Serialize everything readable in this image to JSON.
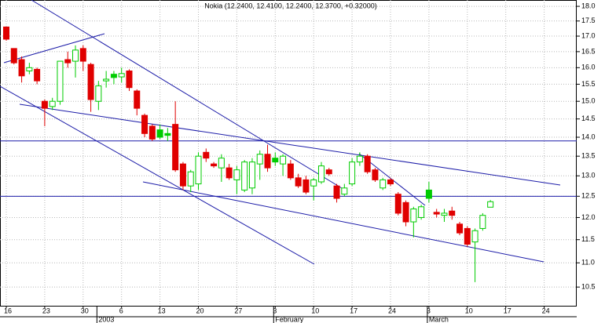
{
  "chart_data": {
    "type": "candlestick",
    "title": "Nokia (12.2400, 12.4100, 12.2400, 12.3700, +0.32000)",
    "categories": [
      "16",
      null,
      null,
      null,
      null,
      "23",
      null,
      null,
      null,
      null,
      "30",
      null,
      null,
      null,
      null,
      "6",
      null,
      null,
      null,
      null,
      "13",
      null,
      null,
      null,
      null,
      "20",
      null,
      null,
      null,
      null,
      "27",
      null,
      null,
      null,
      null,
      "3",
      null,
      null,
      null,
      null,
      "10",
      null,
      null,
      null,
      null,
      "17",
      null,
      null,
      null,
      null,
      "24",
      null,
      null,
      null,
      null,
      "3",
      null,
      null,
      null,
      null,
      "10",
      null,
      null,
      null,
      null,
      "17",
      null,
      null,
      null,
      null,
      "24",
      null,
      null,
      null,
      null
    ],
    "period_labels": [
      "2003",
      "February",
      "March"
    ],
    "open": [
      17.3,
      16.6,
      16.25,
      15.9,
      15.95,
      15.0,
      14.85,
      15.0,
      16.25,
      16.2,
      16.6,
      16.1,
      15.0,
      15.6,
      15.8,
      15.72,
      15.9,
      15.3,
      14.6,
      14.3,
      14.2,
      14.1,
      14.35,
      13.3,
      12.75,
      12.8,
      13.6,
      13.3,
      13.2,
      13.2,
      12.9,
      12.65,
      12.7,
      13.3,
      13.55,
      13.45,
      13.3,
      13.3,
      12.95,
      12.9,
      12.75,
      12.85,
      13.15,
      12.75,
      12.55,
      12.8,
      13.35,
      13.5,
      13.15,
      12.7,
      12.9,
      12.55,
      12.35,
      11.9,
      12.0,
      12.65,
      12.12,
      12.05,
      12.15,
      11.85,
      11.75,
      11.45,
      11.75,
      12.24,
      null,
      null,
      null,
      null,
      null,
      null,
      null,
      null,
      null,
      null,
      null
    ],
    "high": [
      17.3,
      16.6,
      16.35,
      16.15,
      16.0,
      15.05,
      15.1,
      16.2,
      16.5,
      16.7,
      16.7,
      16.15,
      15.6,
      15.9,
      15.9,
      16.0,
      15.95,
      15.35,
      14.65,
      14.35,
      14.35,
      14.25,
      15.0,
      13.35,
      13.15,
      13.6,
      13.7,
      13.35,
      13.55,
      13.3,
      13.25,
      13.4,
      13.45,
      13.65,
      13.8,
      13.6,
      13.55,
      13.4,
      13.05,
      13.0,
      12.95,
      13.35,
      13.2,
      12.8,
      12.8,
      13.45,
      13.6,
      13.55,
      13.2,
      12.95,
      12.95,
      12.6,
      12.4,
      12.25,
      12.3,
      12.85,
      12.2,
      12.2,
      12.25,
      11.9,
      11.8,
      11.75,
      12.1,
      12.41,
      null,
      null,
      null,
      null,
      null,
      null,
      null,
      null,
      null,
      null,
      null
    ],
    "low": [
      16.85,
      16.1,
      15.55,
      15.8,
      15.5,
      14.3,
      14.75,
      14.9,
      16.0,
      15.7,
      15.9,
      14.7,
      14.75,
      15.4,
      15.5,
      15.55,
      15.3,
      14.6,
      14.0,
      13.9,
      13.95,
      13.9,
      13.1,
      12.65,
      12.6,
      12.65,
      13.35,
      13.2,
      12.85,
      12.9,
      12.55,
      12.6,
      12.55,
      12.9,
      13.1,
      13.25,
      13.0,
      12.9,
      12.7,
      12.55,
      12.4,
      12.8,
      13.0,
      12.35,
      12.5,
      12.75,
      13.25,
      13.05,
      12.85,
      12.65,
      12.75,
      12.05,
      11.8,
      11.55,
      11.95,
      12.35,
      12.0,
      11.9,
      11.95,
      11.6,
      11.35,
      10.6,
      11.7,
      12.24,
      null,
      null,
      null,
      null,
      null,
      null,
      null,
      null,
      null,
      null,
      null
    ],
    "close": [
      16.9,
      16.15,
      15.75,
      16.0,
      15.6,
      14.8,
      15.0,
      16.2,
      16.15,
      16.55,
      16.2,
      15.05,
      15.45,
      15.65,
      15.7,
      15.82,
      15.4,
      14.8,
      14.1,
      13.95,
      14.0,
      14.05,
      13.15,
      12.75,
      13.1,
      13.5,
      13.45,
      13.25,
      13.45,
      12.95,
      13.15,
      13.35,
      13.35,
      13.55,
      13.2,
      13.35,
      13.5,
      12.95,
      12.75,
      12.6,
      12.9,
      13.25,
      13.05,
      12.45,
      12.7,
      13.35,
      13.5,
      13.1,
      12.9,
      12.9,
      12.8,
      12.1,
      11.9,
      12.2,
      12.25,
      12.45,
      12.08,
      12.1,
      12.05,
      11.65,
      11.4,
      11.7,
      12.05,
      12.37,
      null,
      null,
      null,
      null,
      null,
      null,
      null,
      null,
      null,
      null,
      null
    ],
    "up_color": "#00cc00",
    "down_color": "#e00000",
    "log_scale": true,
    "grid": true,
    "ylim": [
      10.13,
      18.22
    ],
    "yticks": [
      10.5,
      {
        "value": 11,
        "label": "11.0"
      },
      11.5,
      {
        "value": 12,
        "label": "12.0"
      },
      12.5,
      {
        "value": 13,
        "label": "13.0"
      },
      13.5,
      {
        "value": 14,
        "label": "14.0"
      },
      14.5,
      {
        "value": 15,
        "label": "15.0"
      },
      15.5,
      {
        "value": 16,
        "label": "16.0"
      },
      16.5,
      {
        "value": 17,
        "label": "17.0"
      },
      17.5,
      {
        "value": 18,
        "label": "18.0"
      }
    ],
    "hlines": [
      13.9,
      12.5
    ],
    "line_color": "#1c1ca8"
  }
}
